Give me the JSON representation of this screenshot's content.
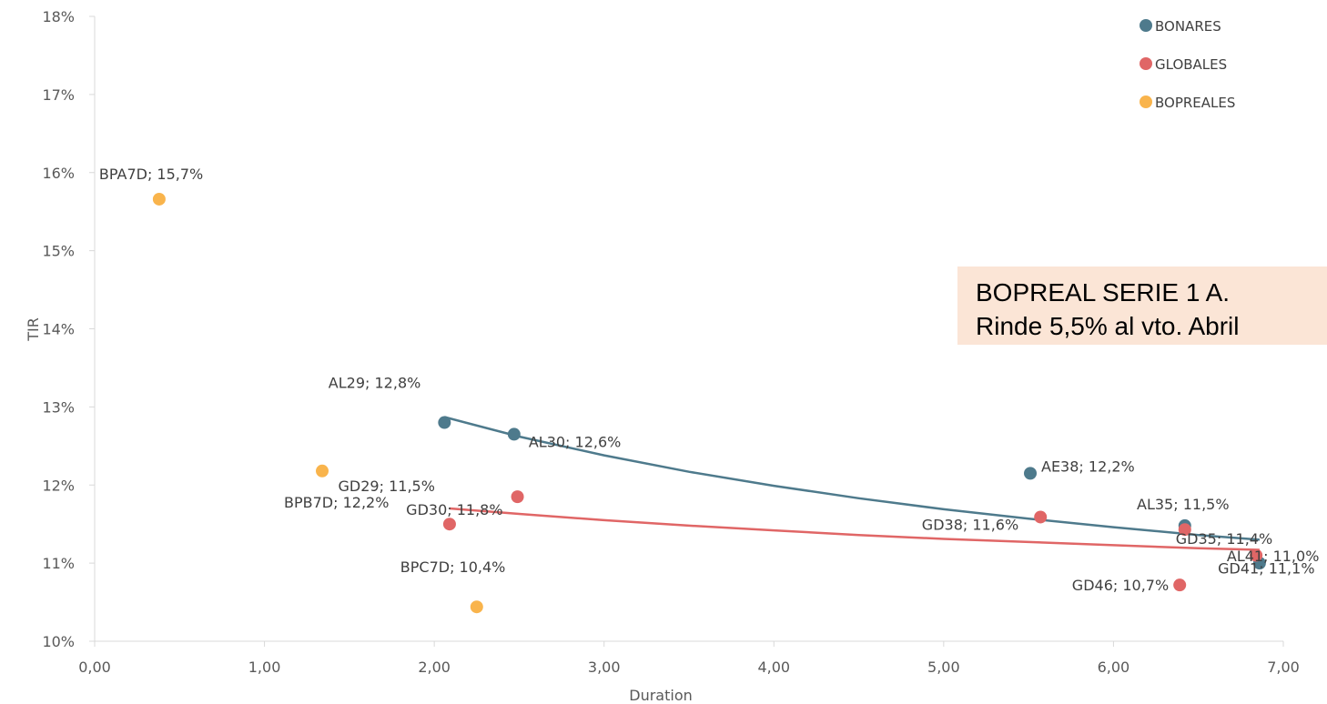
{
  "chart_data": {
    "type": "scatter",
    "xlabel": "Duration",
    "ylabel": "TIR",
    "xlim": [
      0,
      7
    ],
    "ylim": [
      0.1,
      0.18
    ],
    "x_ticks": [
      "0,00",
      "1,00",
      "2,00",
      "3,00",
      "4,00",
      "5,00",
      "6,00",
      "7,00"
    ],
    "y_ticks": [
      "10%",
      "11%",
      "12%",
      "13%",
      "14%",
      "15%",
      "16%",
      "17%",
      "18%"
    ],
    "grid": false,
    "legend_position": "top-right",
    "series": [
      {
        "name": "BONARES",
        "color": "#4e7a8c",
        "points": [
          {
            "label": "AL29; 12,8%",
            "x": 2.06,
            "y": 0.128
          },
          {
            "label": "AL30; 12,6%",
            "x": 2.47,
            "y": 0.1265
          },
          {
            "label": "AE38; 12,2%",
            "x": 5.51,
            "y": 0.1215
          },
          {
            "label": "AL35; 11,5%",
            "x": 6.42,
            "y": 0.1148
          },
          {
            "label": "AL41; 11,0%",
            "x": 6.86,
            "y": 0.11
          }
        ],
        "trendline": [
          {
            "x": 2.06,
            "y": 0.1287
          },
          {
            "x": 2.5,
            "y": 0.1262
          },
          {
            "x": 3.0,
            "y": 0.1238
          },
          {
            "x": 3.5,
            "y": 0.1217
          },
          {
            "x": 4.0,
            "y": 0.1199
          },
          {
            "x": 4.5,
            "y": 0.1183
          },
          {
            "x": 5.0,
            "y": 0.1169
          },
          {
            "x": 5.5,
            "y": 0.1157
          },
          {
            "x": 6.0,
            "y": 0.1146
          },
          {
            "x": 6.5,
            "y": 0.1136
          },
          {
            "x": 6.86,
            "y": 0.113
          }
        ]
      },
      {
        "name": "GLOBALES",
        "color": "#e06666",
        "points": [
          {
            "label": "GD29; 11,5%",
            "x": 2.09,
            "y": 0.115
          },
          {
            "label": "GD30; 11,8%",
            "x": 2.49,
            "y": 0.1185
          },
          {
            "label": "GD38; 11,6%",
            "x": 5.57,
            "y": 0.1159
          },
          {
            "label": "GD35; 11,4%",
            "x": 6.42,
            "y": 0.1143
          },
          {
            "label": "GD41; 11,1%",
            "x": 6.84,
            "y": 0.111
          },
          {
            "label": "GD46; 10,7%",
            "x": 6.39,
            "y": 0.1072
          }
        ],
        "trendline": [
          {
            "x": 2.09,
            "y": 0.117
          },
          {
            "x": 2.5,
            "y": 0.1163
          },
          {
            "x": 3.0,
            "y": 0.1155
          },
          {
            "x": 3.5,
            "y": 0.1148
          },
          {
            "x": 4.0,
            "y": 0.1142
          },
          {
            "x": 4.5,
            "y": 0.1136
          },
          {
            "x": 5.0,
            "y": 0.1131
          },
          {
            "x": 5.5,
            "y": 0.1127
          },
          {
            "x": 6.0,
            "y": 0.1123
          },
          {
            "x": 6.5,
            "y": 0.1119
          },
          {
            "x": 6.86,
            "y": 0.1117
          }
        ]
      },
      {
        "name": "BOPREALES",
        "color": "#f9b44c",
        "points": [
          {
            "label": "BPA7D; 15,7%",
            "x": 0.38,
            "y": 0.1566
          },
          {
            "label": "BPB7D; 12,2%",
            "x": 1.34,
            "y": 0.1218
          },
          {
            "label": "BPC7D; 10,4%",
            "x": 2.25,
            "y": 0.1044
          }
        ]
      }
    ]
  },
  "annotation": {
    "line1": "BOPREAL SERIE 1 A.",
    "line2": "Rinde 5,5% al vto. Abril"
  }
}
